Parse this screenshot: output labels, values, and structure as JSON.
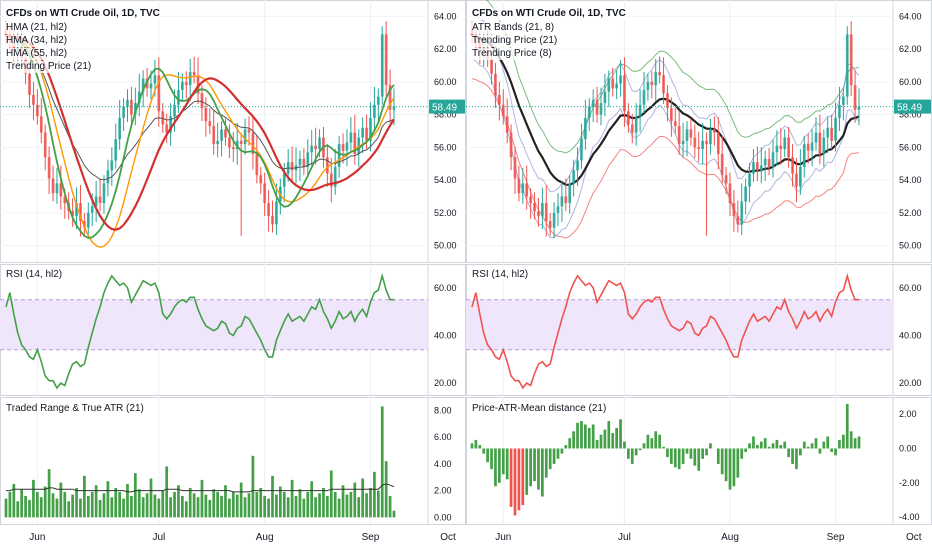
{
  "left": {
    "title_main": "CFDs on WTI Crude Oil, 1D, TVC",
    "legend": [
      "HMA (21, hl2)",
      "HMA (34, hl2)",
      "HMA (55, hl2)",
      "Trending Price (21)"
    ],
    "last_price": "58.49",
    "rsi_label": "RSI (14, hl2)",
    "atr_label": "Traded Range & True ATR (21)"
  },
  "right": {
    "title_main": "CFDs on WTI Crude Oil, 1D, TVC",
    "legend": [
      "ATR Bands (21, 8)",
      "Trending Price (21)",
      "Trending Price (8)"
    ],
    "last_price": "58.49",
    "rsi_label": "RSI (14, hl2)",
    "dist_label": "Price-ATR-Mean distance (21)"
  },
  "x_labels": [
    "Jun",
    "Jul",
    "Aug",
    "Sep",
    "Oct"
  ],
  "colors": {
    "up": "#26a69a",
    "down": "#ef5350",
    "green": "#43a047",
    "orange": "#ff9800",
    "red_line": "#d32f2f",
    "gray_line": "#555555",
    "black_line": "#222222",
    "price_tag": "#26a69a",
    "rsi_band": "#f0e6fb"
  },
  "chart_data": [
    {
      "type": "candlestick",
      "panel": "price",
      "title": "CFDs on WTI Crude Oil, 1D, TVC",
      "x_range": [
        "2019-05-15",
        "2019-10-08"
      ],
      "ylim": [
        49,
        65
      ],
      "y_ticks": [
        50,
        52,
        54,
        56,
        58,
        60,
        62,
        64
      ],
      "last_value": 58.49,
      "close": [
        62.8,
        62.4,
        61.9,
        62.1,
        61.4,
        60.5,
        59.2,
        58.6,
        57.9,
        56.9,
        55.4,
        54.1,
        53.2,
        53.8,
        53.0,
        52.6,
        52.1,
        51.8,
        52.6,
        51.5,
        51.1,
        52.0,
        52.4,
        53.0,
        52.6,
        53.8,
        54.6,
        55.2,
        56.5,
        57.8,
        58.5,
        58.9,
        58.0,
        58.7,
        59.4,
        60.2,
        59.6,
        59.9,
        60.4,
        58.2,
        57.4,
        56.9,
        57.9,
        58.6,
        59.5,
        60.0,
        59.8,
        60.6,
        60.4,
        59.3,
        58.4,
        57.6,
        57.3,
        56.2,
        56.4,
        57.1,
        56.6,
        56.0,
        55.9,
        56.4,
        56.2,
        57.1,
        56.9,
        55.6,
        54.3,
        53.8,
        52.6,
        51.8,
        51.3,
        52.7,
        53.6,
        54.4,
        55.1,
        54.6,
        54.9,
        55.3,
        54.8,
        55.7,
        56.1,
        55.9,
        56.6,
        55.4,
        54.4,
        53.6,
        54.8,
        56.2,
        55.8,
        56.3,
        56.9,
        55.6,
        56.6,
        57.2,
        56.4,
        57.8,
        58.6,
        59.1,
        62.9,
        59.8,
        58.3,
        58.5
      ],
      "series_styles_note": "",
      "series": [
        {
          "name": "HMA (21, hl2)",
          "values": []
        },
        {
          "name": "HMA (34, hl2)",
          "values": []
        },
        {
          "name": "HMA (55, hl2)",
          "values": []
        },
        {
          "name": "Trending Price (21)",
          "values": []
        }
      ]
    },
    {
      "type": "line",
      "panel": "rsi",
      "title": "RSI (14, hl2)",
      "ylim": [
        15,
        70
      ],
      "y_ticks": [
        20,
        40,
        60
      ],
      "band": [
        34,
        55
      ],
      "values": [
        52,
        58,
        49,
        41,
        36,
        34,
        31,
        30,
        34,
        29,
        23,
        21,
        21,
        18,
        20,
        19,
        24,
        28,
        29,
        27,
        28,
        35,
        41,
        47,
        52,
        58,
        62,
        65,
        63,
        61,
        62,
        60,
        54,
        57,
        60,
        63,
        62,
        61,
        62,
        58,
        49,
        47,
        49,
        52,
        54,
        55,
        54,
        56,
        56,
        51,
        47,
        44,
        43,
        42,
        43,
        46,
        45,
        41,
        40,
        43,
        44,
        48,
        47,
        44,
        41,
        38,
        34,
        31,
        31,
        38,
        42,
        46,
        49,
        46,
        47,
        48,
        46,
        49,
        52,
        51,
        55,
        50,
        47,
        43,
        46,
        50,
        47,
        48,
        50,
        46,
        49,
        51,
        48,
        54,
        58,
        59,
        65,
        59,
        55,
        55
      ]
    },
    {
      "type": "bar",
      "panel": "atr",
      "title": "Traded Range & True ATR (21)",
      "ylim": [
        -0.5,
        9
      ],
      "y_ticks": [
        0,
        2,
        4,
        6,
        8
      ],
      "values": [
        1.4,
        1.9,
        2.5,
        1.2,
        2.1,
        1.6,
        1.3,
        2.8,
        1.9,
        1.5,
        2.3,
        3.6,
        1.8,
        1.4,
        2.6,
        1.9,
        1.2,
        1.7,
        2.2,
        1.4,
        3.1,
        1.6,
        1.9,
        2.4,
        1.3,
        1.8,
        2.7,
        1.5,
        2.2,
        1.9,
        1.4,
        2.5,
        1.6,
        3.3,
        2.1,
        1.5,
        1.8,
        2.9,
        1.7,
        1.4,
        2.0,
        3.8,
        1.5,
        1.9,
        2.4,
        1.6,
        1.2,
        2.2,
        1.8,
        1.5,
        2.8,
        1.7,
        1.3,
        2.1,
        1.9,
        1.6,
        2.4,
        1.4,
        1.9,
        1.7,
        2.6,
        1.5,
        1.8,
        4.6,
        1.9,
        2.2,
        1.6,
        1.4,
        3.1,
        1.7,
        2.3,
        1.9,
        1.5,
        2.8,
        1.6,
        2.1,
        1.4,
        1.9,
        2.7,
        1.5,
        1.8,
        2.2,
        1.6,
        3.5,
        1.9,
        1.4,
        2.4,
        1.7,
        1.9,
        2.6,
        1.5,
        2.9,
        1.8,
        2.2,
        3.4,
        2.0,
        8.3,
        4.2,
        1.6,
        0.5
      ],
      "atr_line": [
        2.0,
        2.0,
        2.1,
        2.1,
        2.1,
        2.1,
        2.1,
        2.1,
        2.1,
        2.1,
        2.1,
        2.2,
        2.2,
        2.1,
        2.1,
        2.1,
        2.1,
        2.1,
        2.0,
        2.0,
        2.0,
        2.0,
        2.0,
        2.0,
        2.0,
        2.0,
        2.0,
        2.0,
        2.0,
        2.0,
        2.0,
        1.9,
        1.9,
        2.0,
        2.0,
        2.0,
        2.0,
        2.0,
        2.0,
        2.0,
        2.0,
        2.1,
        2.1,
        2.1,
        2.1,
        2.0,
        2.0,
        2.0,
        2.0,
        2.0,
        2.0,
        2.0,
        2.0,
        2.0,
        2.0,
        2.0,
        2.0,
        2.0,
        1.9,
        1.9,
        1.9,
        1.9,
        1.9,
        2.0,
        2.0,
        2.0,
        2.0,
        2.0,
        2.0,
        2.0,
        2.0,
        2.0,
        2.0,
        2.0,
        2.0,
        2.0,
        2.0,
        2.0,
        2.0,
        2.0,
        2.0,
        2.0,
        2.0,
        2.1,
        2.1,
        2.1,
        2.1,
        2.1,
        2.1,
        2.1,
        2.1,
        2.1,
        2.1,
        2.1,
        2.1,
        2.1,
        2.4,
        2.5,
        2.4,
        2.3
      ]
    },
    {
      "type": "bar",
      "panel": "distance",
      "title": "Price-ATR-Mean distance (21)",
      "ylim": [
        -4.4,
        3
      ],
      "y_ticks": [
        -4,
        -2,
        0,
        2
      ],
      "values": [
        0.3,
        0.5,
        0.2,
        -0.3,
        -0.8,
        -1.2,
        -2.2,
        -2.0,
        -1.5,
        -1.8,
        -3.4,
        -3.9,
        -3.6,
        -3.3,
        -2.7,
        -2.2,
        -1.9,
        -2.4,
        -2.8,
        -1.7,
        -1.2,
        -0.9,
        -0.6,
        -0.3,
        0.2,
        0.6,
        1.0,
        1.5,
        1.6,
        1.4,
        1.2,
        1.4,
        0.5,
        0.8,
        1.1,
        1.6,
        0.9,
        1.2,
        1.7,
        0.4,
        -0.6,
        -0.9,
        -0.4,
        -0.1,
        0.3,
        0.8,
        0.6,
        1.0,
        0.8,
        0.1,
        -0.5,
        -0.9,
        -1.1,
        -1.2,
        -0.9,
        -0.3,
        -0.6,
        -1.0,
        -1.3,
        -0.6,
        -0.4,
        0.3,
        0.0,
        -0.9,
        -1.5,
        -1.9,
        -2.4,
        -2.2,
        -1.7,
        -0.6,
        -0.2,
        0.3,
        0.7,
        0.2,
        0.4,
        0.6,
        0.1,
        0.3,
        0.5,
        0.2,
        0.4,
        -0.5,
        -0.9,
        -1.2,
        -0.4,
        0.4,
        0.1,
        0.3,
        0.6,
        -0.3,
        0.4,
        0.7,
        -0.2,
        -0.4,
        0.5,
        0.8,
        2.6,
        1.0,
        0.6,
        0.7
      ]
    }
  ]
}
